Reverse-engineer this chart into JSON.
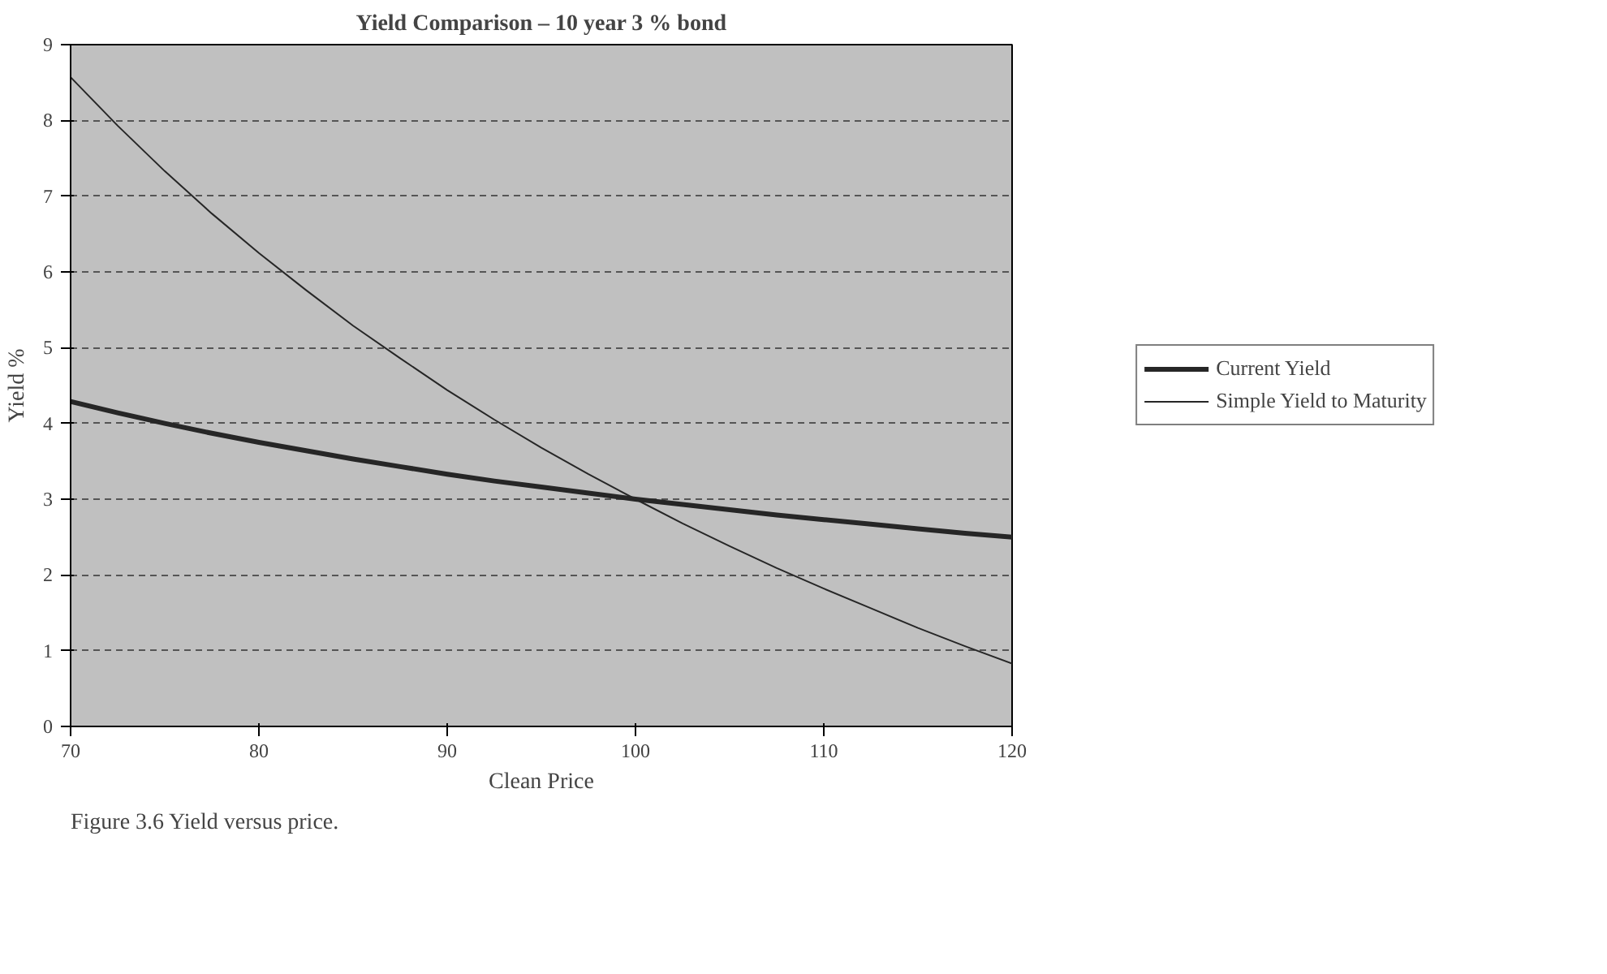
{
  "chart_data": {
    "type": "line",
    "title": "Yield Comparison – 10 year 3 % bond",
    "xlabel": "Clean Price",
    "ylabel": "Yield %",
    "x": [
      70,
      72.5,
      75,
      77.5,
      80,
      82.5,
      85,
      87.5,
      90,
      92.5,
      95,
      97.5,
      100,
      102.5,
      105,
      107.5,
      110,
      112.5,
      115,
      117.5,
      120
    ],
    "series": [
      {
        "name": "Current Yield",
        "color": "#262626",
        "values": [
          4.29,
          4.14,
          4.0,
          3.87,
          3.75,
          3.64,
          3.53,
          3.43,
          3.33,
          3.24,
          3.16,
          3.08,
          3.0,
          2.93,
          2.86,
          2.79,
          2.73,
          2.67,
          2.61,
          2.55,
          2.5
        ]
      },
      {
        "name": "Simple Yield to Maturity",
        "color": "#262626",
        "values": [
          8.57,
          7.93,
          7.33,
          6.77,
          6.25,
          5.76,
          5.29,
          4.86,
          4.44,
          4.05,
          3.68,
          3.33,
          3.0,
          2.68,
          2.38,
          2.09,
          1.82,
          1.56,
          1.3,
          1.06,
          0.83
        ]
      }
    ],
    "xlim": [
      70,
      120
    ],
    "xticks": [
      70,
      80,
      90,
      100,
      110,
      120
    ],
    "ylim": [
      0,
      9
    ],
    "yticks": [
      0,
      1,
      2,
      3,
      4,
      5,
      6,
      7,
      8,
      9
    ],
    "grid": "y",
    "legend": "right",
    "marker": "none",
    "line_style": "solid",
    "annotations": [
      "Figure 3.6    Yield versus price."
    ]
  }
}
